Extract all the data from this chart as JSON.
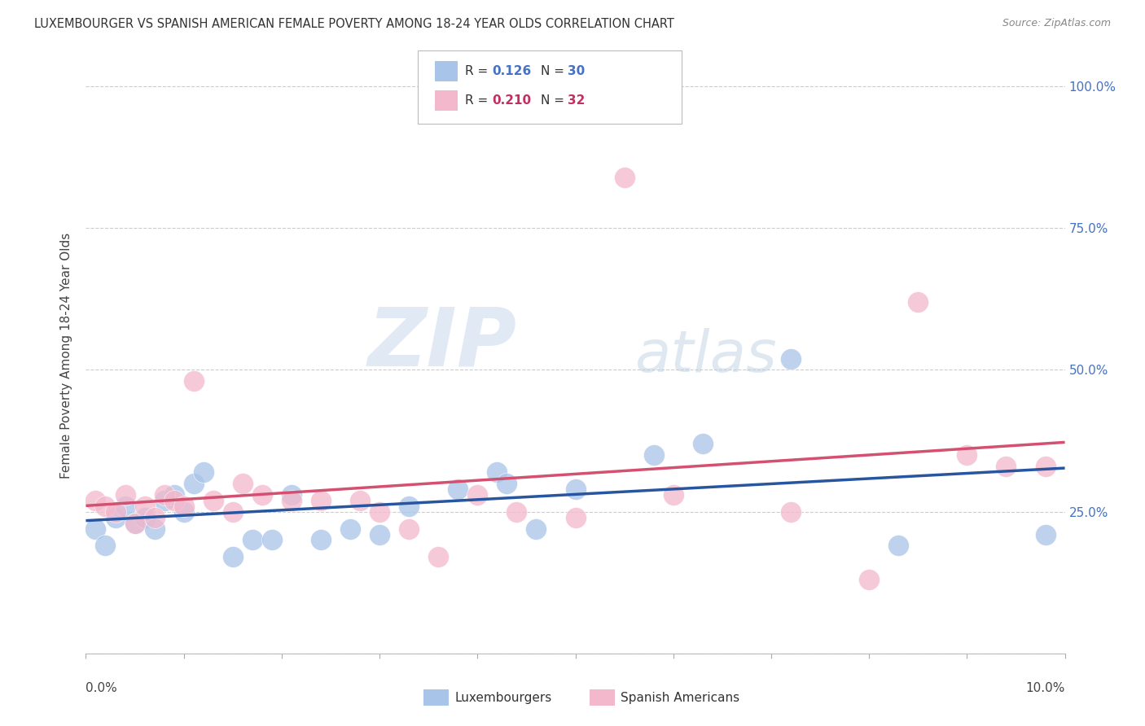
{
  "title": "LUXEMBOURGER VS SPANISH AMERICAN FEMALE POVERTY AMONG 18-24 YEAR OLDS CORRELATION CHART",
  "source": "Source: ZipAtlas.com",
  "ylabel": "Female Poverty Among 18-24 Year Olds",
  "ytick_labels": [
    "",
    "25.0%",
    "50.0%",
    "75.0%",
    "100.0%"
  ],
  "ytick_values": [
    0.0,
    0.25,
    0.5,
    0.75,
    1.0
  ],
  "r_luxembourger": 0.126,
  "n_luxembourger": 30,
  "r_spanish": 0.21,
  "n_spanish": 32,
  "legend_label_1": "Luxembourgers",
  "legend_label_2": "Spanish Americans",
  "color_blue": "#a8c4e8",
  "color_pink": "#f4b8cc",
  "trendline_blue": "#2855a0",
  "trendline_pink": "#d45070",
  "watermark_zip": "ZIP",
  "watermark_atlas": "atlas",
  "luxembourger_x": [
    0.001,
    0.002,
    0.003,
    0.004,
    0.005,
    0.006,
    0.007,
    0.008,
    0.009,
    0.01,
    0.011,
    0.012,
    0.015,
    0.017,
    0.019,
    0.021,
    0.024,
    0.027,
    0.03,
    0.033,
    0.038,
    0.042,
    0.043,
    0.046,
    0.05,
    0.058,
    0.063,
    0.072,
    0.083,
    0.098
  ],
  "luxembourger_y": [
    0.22,
    0.19,
    0.24,
    0.26,
    0.23,
    0.24,
    0.22,
    0.27,
    0.28,
    0.25,
    0.3,
    0.32,
    0.17,
    0.2,
    0.2,
    0.28,
    0.2,
    0.22,
    0.21,
    0.26,
    0.29,
    0.32,
    0.3,
    0.22,
    0.29,
    0.35,
    0.37,
    0.52,
    0.19,
    0.21
  ],
  "spanish_x": [
    0.001,
    0.002,
    0.003,
    0.004,
    0.005,
    0.006,
    0.007,
    0.008,
    0.009,
    0.01,
    0.011,
    0.013,
    0.015,
    0.016,
    0.018,
    0.021,
    0.024,
    0.028,
    0.03,
    0.033,
    0.036,
    0.04,
    0.044,
    0.05,
    0.055,
    0.06,
    0.072,
    0.08,
    0.085,
    0.09,
    0.094,
    0.098
  ],
  "spanish_y": [
    0.27,
    0.26,
    0.25,
    0.28,
    0.23,
    0.26,
    0.24,
    0.28,
    0.27,
    0.26,
    0.48,
    0.27,
    0.25,
    0.3,
    0.28,
    0.27,
    0.27,
    0.27,
    0.25,
    0.22,
    0.17,
    0.28,
    0.25,
    0.24,
    0.84,
    0.28,
    0.25,
    0.13,
    0.62,
    0.35,
    0.33,
    0.33
  ],
  "xlim": [
    0.0,
    0.1
  ],
  "ylim": [
    0.0,
    1.05
  ]
}
